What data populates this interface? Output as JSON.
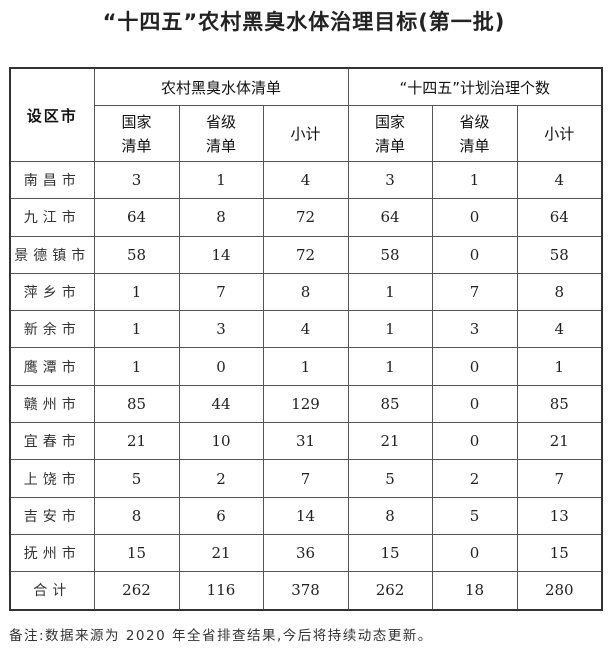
{
  "title": "“十四五”农村黑臭水体治理目标(第一批)",
  "headers": {
    "city": "设区市",
    "group1": "农村黑臭水体清单",
    "group2": "“十四五”计划治理个数",
    "national": "国家清单",
    "provincial": "省级清单",
    "subtotal": "小计"
  },
  "rows": [
    [
      "南昌市",
      "3",
      "1",
      "4",
      "3",
      "1",
      "4"
    ],
    [
      "九江市",
      "64",
      "8",
      "72",
      "64",
      "0",
      "64"
    ],
    [
      "景德镇市",
      "58",
      "14",
      "72",
      "58",
      "0",
      "58"
    ],
    [
      "萍乡市",
      "1",
      "7",
      "8",
      "1",
      "7",
      "8"
    ],
    [
      "新余市",
      "1",
      "3",
      "4",
      "1",
      "3",
      "4"
    ],
    [
      "鹰潭市",
      "1",
      "0",
      "1",
      "1",
      "0",
      "1"
    ],
    [
      "赣州市",
      "85",
      "44",
      "129",
      "85",
      "0",
      "85"
    ],
    [
      "宜春市",
      "21",
      "10",
      "31",
      "21",
      "0",
      "21"
    ],
    [
      "上饶市",
      "5",
      "2",
      "7",
      "5",
      "2",
      "7"
    ],
    [
      "吉安市",
      "8",
      "6",
      "14",
      "8",
      "5",
      "13"
    ],
    [
      "抚州市",
      "15",
      "21",
      "36",
      "15",
      "0",
      "15"
    ],
    [
      "合计",
      "262",
      "116",
      "378",
      "262",
      "18",
      "280"
    ]
  ],
  "note": "备注:数据来源为 2020 年全省排查结果,今后将持续动态更新。"
}
